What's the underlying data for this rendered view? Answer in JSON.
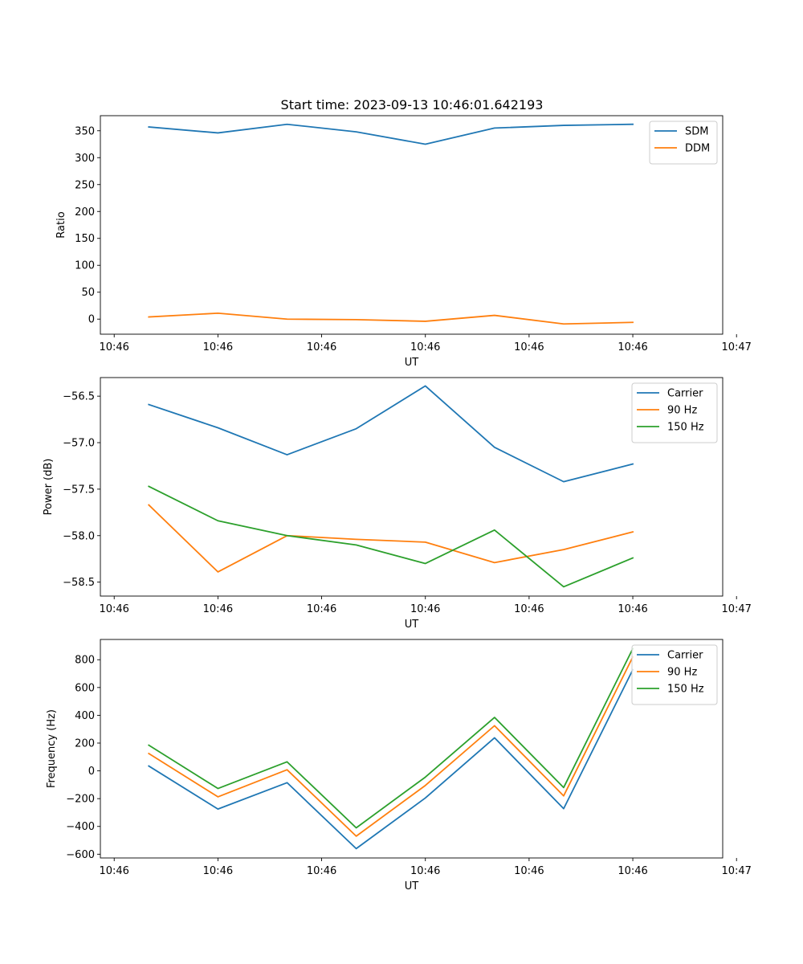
{
  "figure": {
    "title": "Start time: 2023-09-13 10:46:01.642193",
    "colors": {
      "blue": "#1f77b4",
      "orange": "#ff7f0e",
      "green": "#2ca02c"
    }
  },
  "chart_data": [
    {
      "type": "line",
      "title": "Start time: 2023-09-13 10:46:01.642193",
      "xlabel": "UT",
      "ylabel": "Ratio",
      "x": [
        1,
        2,
        3,
        4,
        5,
        6,
        7,
        8
      ],
      "xlim": [
        0.3,
        9.3
      ],
      "xticks": [
        0.5,
        2,
        3.5,
        5,
        6.5,
        8,
        9.5
      ],
      "xticklabels": [
        "10:46",
        "10:46",
        "10:46",
        "10:46",
        "10:46",
        "10:46",
        "10:47"
      ],
      "ylim": [
        -28,
        378
      ],
      "yticks": [
        0,
        50,
        100,
        150,
        200,
        250,
        300,
        350
      ],
      "yticklabels": [
        "0",
        "50",
        "100",
        "150",
        "200",
        "250",
        "300",
        "350"
      ],
      "legend_position": "top-right",
      "grid": false,
      "series": [
        {
          "name": "SDM",
          "color": "#1f77b4",
          "values": [
            357,
            346,
            362,
            348,
            325,
            355,
            360,
            362
          ]
        },
        {
          "name": "DDM",
          "color": "#ff7f0e",
          "values": [
            4,
            11,
            0,
            -1,
            -4,
            7,
            -9,
            -6
          ]
        }
      ]
    },
    {
      "type": "line",
      "title": "",
      "xlabel": "UT",
      "ylabel": "Power (dB)",
      "x": [
        1,
        2,
        3,
        4,
        5,
        6,
        7,
        8
      ],
      "xlim": [
        0.3,
        9.3
      ],
      "xticks": [
        0.5,
        2,
        3.5,
        5,
        6.5,
        8,
        9.5
      ],
      "xticklabels": [
        "10:46",
        "10:46",
        "10:46",
        "10:46",
        "10:46",
        "10:46",
        "10:47"
      ],
      "ylim": [
        -58.65,
        -56.3
      ],
      "yticks": [
        -58.5,
        -58.0,
        -57.5,
        -57.0,
        -56.5
      ],
      "yticklabels": [
        "−58.5",
        "−58.0",
        "−57.5",
        "−57.0",
        "−56.5"
      ],
      "legend_position": "top-right",
      "grid": false,
      "series": [
        {
          "name": "Carrier",
          "color": "#1f77b4",
          "values": [
            -56.59,
            -56.84,
            -57.13,
            -56.85,
            -56.39,
            -57.05,
            -57.42,
            -57.23
          ]
        },
        {
          "name": "90 Hz",
          "color": "#ff7f0e",
          "values": [
            -57.67,
            -58.39,
            -58.0,
            -58.04,
            -58.07,
            -58.29,
            -58.15,
            -57.96
          ]
        },
        {
          "name": "150 Hz",
          "color": "#2ca02c",
          "values": [
            -57.47,
            -57.84,
            -58.0,
            -58.1,
            -58.3,
            -57.94,
            -58.55,
            -58.24
          ]
        }
      ]
    },
    {
      "type": "line",
      "title": "",
      "xlabel": "UT",
      "ylabel": "Frequency (Hz)",
      "x": [
        1,
        2,
        3,
        4,
        5,
        6,
        7,
        8
      ],
      "xlim": [
        0.3,
        9.3
      ],
      "xticks": [
        0.5,
        2,
        3.5,
        5,
        6.5,
        8,
        9.5
      ],
      "xticklabels": [
        "10:46",
        "10:46",
        "10:46",
        "10:46",
        "10:46",
        "10:46",
        "10:47"
      ],
      "ylim": [
        -627,
        946
      ],
      "yticks": [
        -600,
        -400,
        -200,
        0,
        200,
        400,
        600,
        800
      ],
      "yticklabels": [
        "−600",
        "−400",
        "−200",
        "0",
        "200",
        "400",
        "600",
        "800"
      ],
      "legend_position": "top-right",
      "grid": false,
      "series": [
        {
          "name": "Carrier",
          "color": "#1f77b4",
          "values": [
            35,
            -275,
            -85,
            -560,
            -195,
            238,
            -272,
            728
          ]
        },
        {
          "name": "90 Hz",
          "color": "#ff7f0e",
          "values": [
            125,
            -187,
            8,
            -470,
            -105,
            325,
            -180,
            820
          ]
        },
        {
          "name": "150 Hz",
          "color": "#2ca02c",
          "values": [
            185,
            -127,
            65,
            -410,
            -45,
            385,
            -120,
            880
          ]
        }
      ]
    }
  ]
}
